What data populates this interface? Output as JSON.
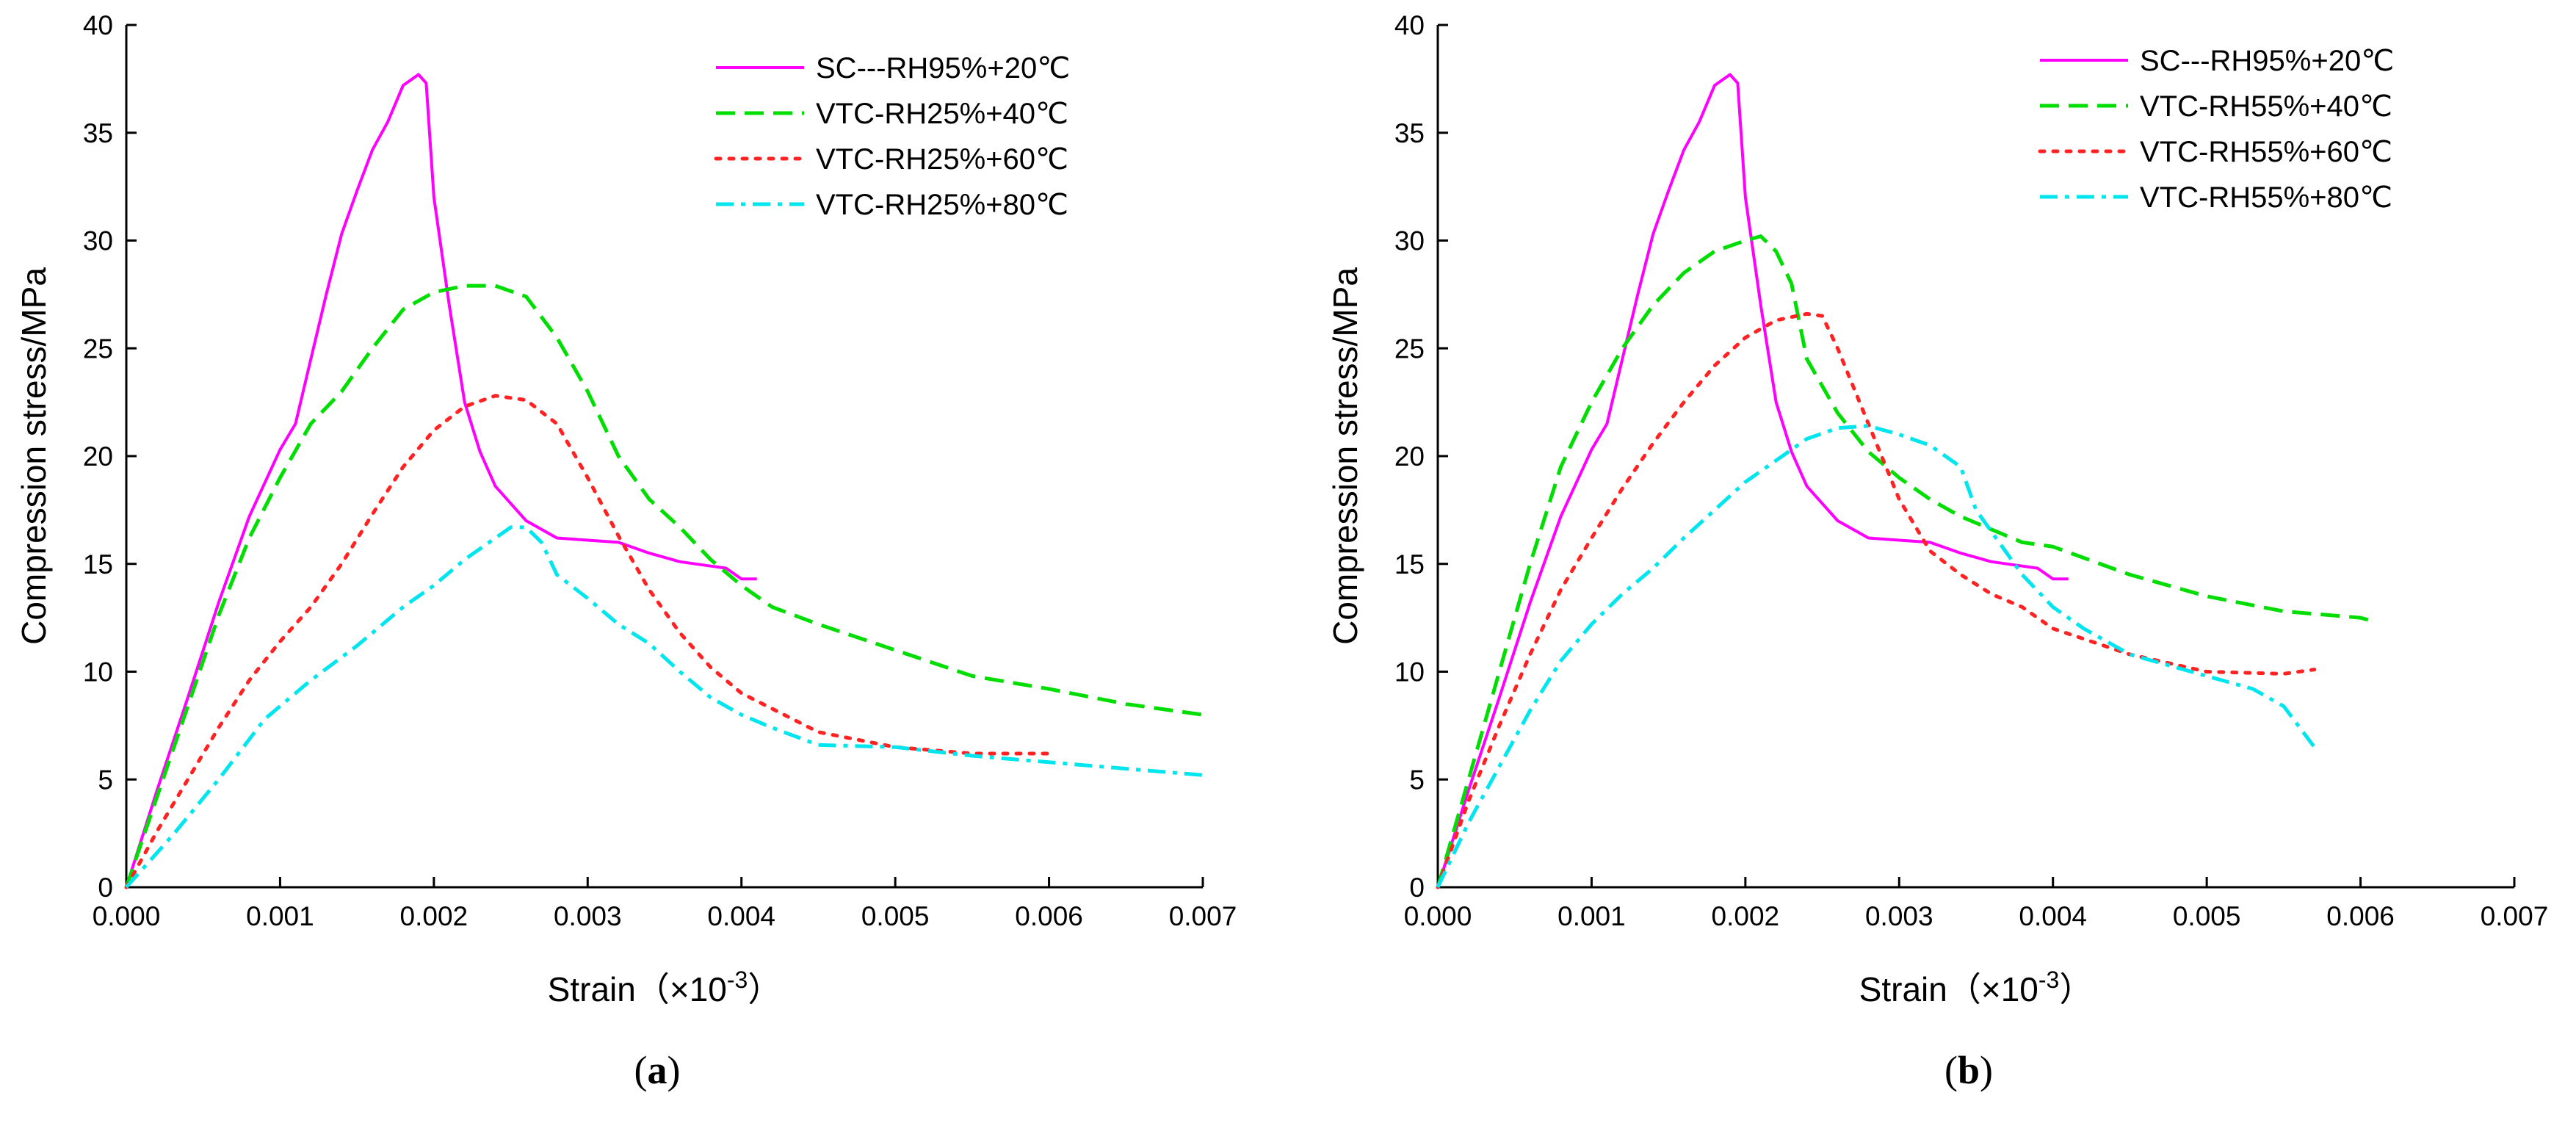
{
  "chart_data": [
    {
      "type": "line",
      "panel_label": "a",
      "xlabel": "Strain（×10",
      "xlabel_sup": "-3",
      "xlabel_close": "）",
      "ylabel": "Compression stress/MPa",
      "xlim": [
        0,
        0.007
      ],
      "ylim": [
        0,
        40
      ],
      "xticks": [
        "0.000",
        "0.001",
        "0.002",
        "0.003",
        "0.004",
        "0.005",
        "0.006",
        "0.007"
      ],
      "yticks": [
        "0",
        "5",
        "10",
        "15",
        "20",
        "25",
        "30",
        "35",
        "40"
      ],
      "grid": false,
      "legend_position": "top-right",
      "series": [
        {
          "name": "SC---RH95%+20℃",
          "color": "#ff00ff",
          "style": "solid",
          "points": [
            [
              0,
              0
            ],
            [
              0.0002,
              4.5
            ],
            [
              0.0004,
              8.8
            ],
            [
              0.0006,
              13.2
            ],
            [
              0.0008,
              17.2
            ],
            [
              0.001,
              20.3
            ],
            [
              0.0011,
              21.5
            ],
            [
              0.0012,
              24.5
            ],
            [
              0.0013,
              27.5
            ],
            [
              0.0014,
              30.3
            ],
            [
              0.0015,
              32.3
            ],
            [
              0.0016,
              34.2
            ],
            [
              0.0017,
              35.5
            ],
            [
              0.0018,
              37.2
            ],
            [
              0.0019,
              37.7
            ],
            [
              0.00195,
              37.3
            ],
            [
              0.002,
              32
            ],
            [
              0.0021,
              27
            ],
            [
              0.0022,
              22.5
            ],
            [
              0.0023,
              20.2
            ],
            [
              0.0024,
              18.6
            ],
            [
              0.0026,
              17.0
            ],
            [
              0.0028,
              16.2
            ],
            [
              0.003,
              16.1
            ],
            [
              0.0032,
              16.0
            ],
            [
              0.0034,
              15.5
            ],
            [
              0.0036,
              15.1
            ],
            [
              0.0038,
              14.9
            ],
            [
              0.0039,
              14.8
            ],
            [
              0.004,
              14.3
            ],
            [
              0.0041,
              14.3
            ]
          ]
        },
        {
          "name": "VTC-RH25%+40℃",
          "color": "#00dd00",
          "style": "dashed",
          "points": [
            [
              0,
              0
            ],
            [
              0.0002,
              4.2
            ],
            [
              0.0004,
              8.4
            ],
            [
              0.0006,
              12.6
            ],
            [
              0.0008,
              16.2
            ],
            [
              0.001,
              19.0
            ],
            [
              0.0012,
              21.5
            ],
            [
              0.0014,
              23.0
            ],
            [
              0.0016,
              25.0
            ],
            [
              0.0018,
              26.8
            ],
            [
              0.002,
              27.6
            ],
            [
              0.0022,
              27.9
            ],
            [
              0.0024,
              27.9
            ],
            [
              0.0026,
              27.4
            ],
            [
              0.0028,
              25.5
            ],
            [
              0.003,
              23.0
            ],
            [
              0.0032,
              20.0
            ],
            [
              0.0034,
              18.0
            ],
            [
              0.0036,
              16.7
            ],
            [
              0.0038,
              15.2
            ],
            [
              0.004,
              14.0
            ],
            [
              0.0042,
              13.0
            ],
            [
              0.0045,
              12.2
            ],
            [
              0.005,
              11.0
            ],
            [
              0.0055,
              9.8
            ],
            [
              0.006,
              9.2
            ],
            [
              0.0065,
              8.5
            ],
            [
              0.007,
              8.0
            ]
          ]
        },
        {
          "name": "VTC-RH25%+60℃",
          "color": "#ff2222",
          "style": "dotted",
          "points": [
            [
              0,
              0
            ],
            [
              0.0002,
              2.6
            ],
            [
              0.0004,
              5.0
            ],
            [
              0.0006,
              7.4
            ],
            [
              0.0008,
              9.6
            ],
            [
              0.001,
              11.4
            ],
            [
              0.0012,
              13.0
            ],
            [
              0.0014,
              15.0
            ],
            [
              0.0016,
              17.3
            ],
            [
              0.0018,
              19.5
            ],
            [
              0.002,
              21.2
            ],
            [
              0.0022,
              22.3
            ],
            [
              0.0024,
              22.8
            ],
            [
              0.0026,
              22.6
            ],
            [
              0.0028,
              21.5
            ],
            [
              0.003,
              19.0
            ],
            [
              0.0032,
              16.3
            ],
            [
              0.0034,
              13.8
            ],
            [
              0.0036,
              11.8
            ],
            [
              0.0038,
              10.2
            ],
            [
              0.004,
              9.0
            ],
            [
              0.0045,
              7.2
            ],
            [
              0.005,
              6.5
            ],
            [
              0.0055,
              6.2
            ],
            [
              0.006,
              6.2
            ]
          ]
        },
        {
          "name": "VTC-RH25%+80℃",
          "color": "#00e5ee",
          "style": "dashdot",
          "points": [
            [
              0,
              0
            ],
            [
              0.0003,
              2.4
            ],
            [
              0.0006,
              5.0
            ],
            [
              0.0009,
              7.8
            ],
            [
              0.0012,
              9.6
            ],
            [
              0.0015,
              11.2
            ],
            [
              0.0018,
              13.0
            ],
            [
              0.002,
              14.0
            ],
            [
              0.0022,
              15.2
            ],
            [
              0.0024,
              16.2
            ],
            [
              0.0025,
              16.7
            ],
            [
              0.0026,
              16.7
            ],
            [
              0.0027,
              16.0
            ],
            [
              0.0028,
              14.5
            ],
            [
              0.003,
              13.4
            ],
            [
              0.0032,
              12.2
            ],
            [
              0.0034,
              11.3
            ],
            [
              0.0036,
              10.0
            ],
            [
              0.0038,
              8.8
            ],
            [
              0.004,
              8.0
            ],
            [
              0.0042,
              7.4
            ],
            [
              0.0045,
              6.6
            ],
            [
              0.005,
              6.5
            ],
            [
              0.0055,
              6.1
            ],
            [
              0.006,
              5.8
            ],
            [
              0.0065,
              5.5
            ],
            [
              0.007,
              5.2
            ]
          ]
        }
      ]
    },
    {
      "type": "line",
      "panel_label": "b",
      "xlabel": "Strain（×10",
      "xlabel_sup": "-3",
      "xlabel_close": "）",
      "ylabel": "Compression stress/MPa",
      "xlim": [
        0,
        0.007
      ],
      "ylim": [
        0,
        40
      ],
      "xticks": [
        "0.000",
        "0.001",
        "0.002",
        "0.003",
        "0.004",
        "0.005",
        "0.006",
        "0.007"
      ],
      "yticks": [
        "0",
        "5",
        "10",
        "15",
        "20",
        "25",
        "30",
        "35",
        "40"
      ],
      "grid": false,
      "legend_position": "top-right",
      "series": [
        {
          "name": "SC---RH95%+20℃",
          "color": "#ff00ff",
          "style": "solid",
          "points": [
            [
              0,
              0
            ],
            [
              0.0002,
              4.5
            ],
            [
              0.0004,
              8.8
            ],
            [
              0.0006,
              13.2
            ],
            [
              0.0008,
              17.2
            ],
            [
              0.001,
              20.3
            ],
            [
              0.0011,
              21.5
            ],
            [
              0.0012,
              24.5
            ],
            [
              0.0013,
              27.5
            ],
            [
              0.0014,
              30.3
            ],
            [
              0.0015,
              32.3
            ],
            [
              0.0016,
              34.2
            ],
            [
              0.0017,
              35.5
            ],
            [
              0.0018,
              37.2
            ],
            [
              0.0019,
              37.7
            ],
            [
              0.00195,
              37.3
            ],
            [
              0.002,
              32
            ],
            [
              0.0021,
              27
            ],
            [
              0.0022,
              22.5
            ],
            [
              0.0023,
              20.2
            ],
            [
              0.0024,
              18.6
            ],
            [
              0.0026,
              17.0
            ],
            [
              0.0028,
              16.2
            ],
            [
              0.003,
              16.1
            ],
            [
              0.0032,
              16.0
            ],
            [
              0.0034,
              15.5
            ],
            [
              0.0036,
              15.1
            ],
            [
              0.0038,
              14.9
            ],
            [
              0.0039,
              14.8
            ],
            [
              0.004,
              14.3
            ],
            [
              0.0041,
              14.3
            ]
          ]
        },
        {
          "name": "VTC-RH55%+40℃",
          "color": "#00dd00",
          "style": "dashed",
          "points": [
            [
              0,
              0
            ],
            [
              0.0002,
              5.0
            ],
            [
              0.0004,
              10.0
            ],
            [
              0.0006,
              15.0
            ],
            [
              0.0008,
              19.5
            ],
            [
              0.001,
              22.5
            ],
            [
              0.0012,
              25.0
            ],
            [
              0.0014,
              27.0
            ],
            [
              0.0016,
              28.5
            ],
            [
              0.0018,
              29.5
            ],
            [
              0.002,
              30.0
            ],
            [
              0.0021,
              30.2
            ],
            [
              0.0022,
              29.5
            ],
            [
              0.0023,
              28.0
            ],
            [
              0.0024,
              24.5
            ],
            [
              0.0026,
              22.0
            ],
            [
              0.0028,
              20.2
            ],
            [
              0.003,
              19.0
            ],
            [
              0.0032,
              18.0
            ],
            [
              0.0034,
              17.2
            ],
            [
              0.0036,
              16.6
            ],
            [
              0.0038,
              16.0
            ],
            [
              0.004,
              15.8
            ],
            [
              0.0045,
              14.5
            ],
            [
              0.005,
              13.5
            ],
            [
              0.0055,
              12.8
            ],
            [
              0.006,
              12.5
            ],
            [
              0.0061,
              12.3
            ]
          ]
        },
        {
          "name": "VTC-RH55%+60℃",
          "color": "#ff2222",
          "style": "dotted",
          "points": [
            [
              0,
              0
            ],
            [
              0.0002,
              4.0
            ],
            [
              0.0004,
              7.5
            ],
            [
              0.0006,
              10.8
            ],
            [
              0.0008,
              13.8
            ],
            [
              0.001,
              16.2
            ],
            [
              0.0012,
              18.5
            ],
            [
              0.0014,
              20.6
            ],
            [
              0.0016,
              22.5
            ],
            [
              0.0018,
              24.2
            ],
            [
              0.002,
              25.5
            ],
            [
              0.0022,
              26.3
            ],
            [
              0.0024,
              26.6
            ],
            [
              0.0025,
              26.5
            ],
            [
              0.0026,
              25.0
            ],
            [
              0.0028,
              21.5
            ],
            [
              0.003,
              18.0
            ],
            [
              0.0032,
              15.6
            ],
            [
              0.0034,
              14.5
            ],
            [
              0.0036,
              13.6
            ],
            [
              0.0038,
              13.0
            ],
            [
              0.004,
              12.0
            ],
            [
              0.0045,
              10.8
            ],
            [
              0.005,
              10.0
            ],
            [
              0.0055,
              9.9
            ],
            [
              0.0057,
              10.1
            ]
          ]
        },
        {
          "name": "VTC-RH55%+80℃",
          "color": "#00e5ee",
          "style": "dashdot",
          "points": [
            [
              0,
              0
            ],
            [
              0.0002,
              3.0
            ],
            [
              0.0004,
              5.6
            ],
            [
              0.0006,
              8.2
            ],
            [
              0.0008,
              10.5
            ],
            [
              0.001,
              12.2
            ],
            [
              0.0012,
              13.6
            ],
            [
              0.0014,
              14.8
            ],
            [
              0.0016,
              16.2
            ],
            [
              0.0018,
              17.5
            ],
            [
              0.002,
              18.8
            ],
            [
              0.0022,
              19.8
            ],
            [
              0.0024,
              20.8
            ],
            [
              0.0026,
              21.3
            ],
            [
              0.0028,
              21.4
            ],
            [
              0.003,
              21.0
            ],
            [
              0.0032,
              20.5
            ],
            [
              0.0034,
              19.5
            ],
            [
              0.0035,
              17.5
            ],
            [
              0.0036,
              16.5
            ],
            [
              0.0038,
              14.5
            ],
            [
              0.004,
              13.0
            ],
            [
              0.0042,
              12.0
            ],
            [
              0.0045,
              10.8
            ],
            [
              0.005,
              9.8
            ],
            [
              0.0053,
              9.2
            ],
            [
              0.0055,
              8.4
            ],
            [
              0.0057,
              6.5
            ]
          ]
        }
      ]
    }
  ]
}
